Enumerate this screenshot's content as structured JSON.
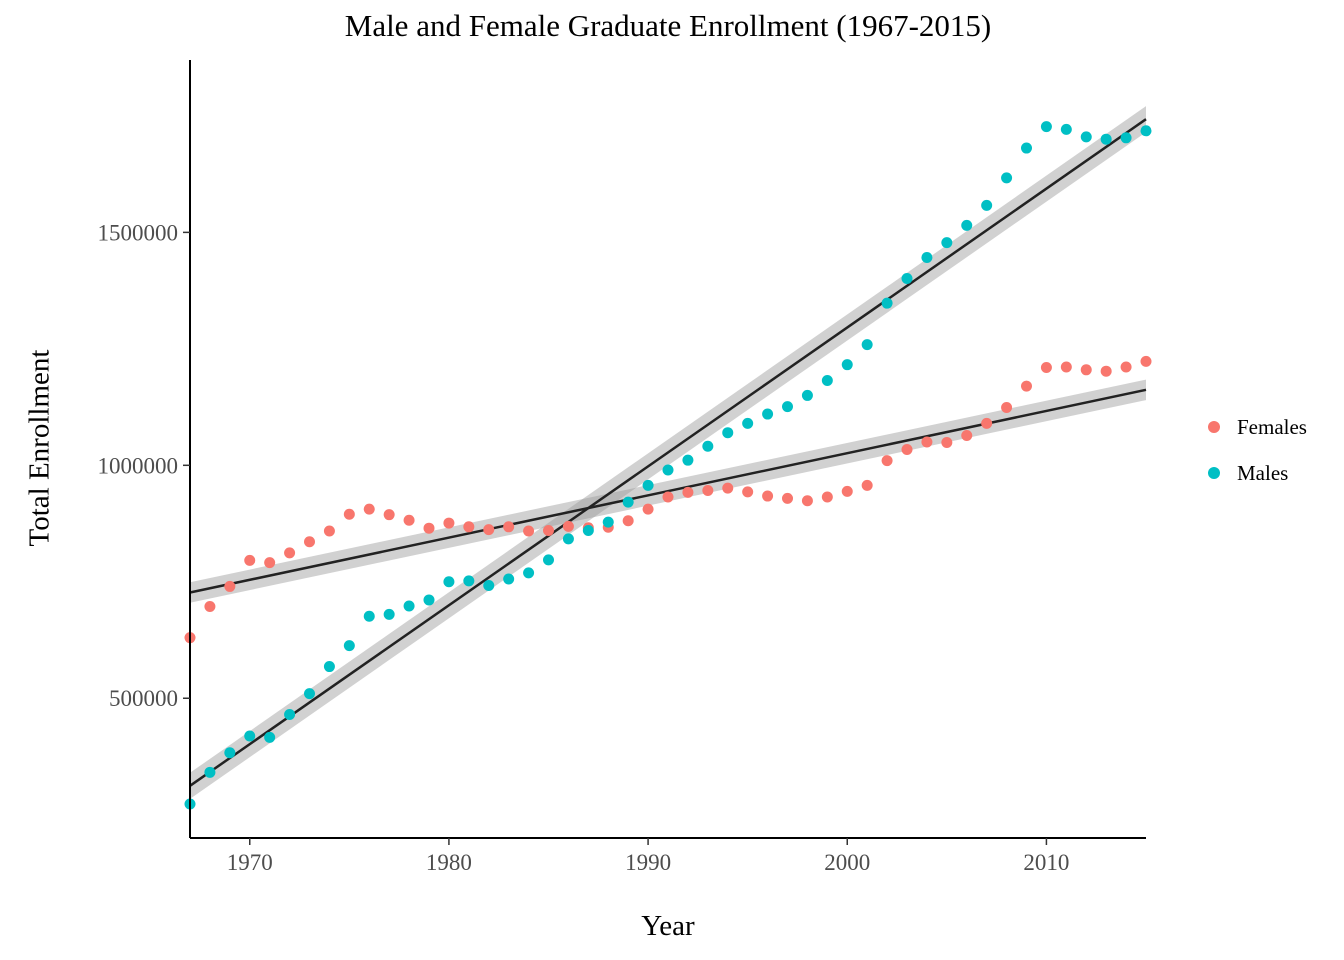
{
  "chart_data": {
    "type": "scatter",
    "title": "Male and Female Graduate Enrollment (1967-2015)",
    "xlabel": "Year",
    "ylabel": "Total Enrollment",
    "xlim": [
      1967,
      2015
    ],
    "ylim": [
      200000,
      1870000
    ],
    "x_ticks": [
      1970,
      1980,
      1990,
      2000,
      2010
    ],
    "x_tick_labels": [
      "1970",
      "1980",
      "1990",
      "2000",
      "2010"
    ],
    "y_ticks": [
      500000,
      1000000,
      1500000
    ],
    "y_tick_labels": [
      "500000",
      "1000000",
      "1500000"
    ],
    "grid": false,
    "legend": "right",
    "x": [
      1967,
      1968,
      1969,
      1970,
      1971,
      1972,
      1973,
      1974,
      1975,
      1976,
      1977,
      1978,
      1979,
      1980,
      1981,
      1982,
      1983,
      1984,
      1985,
      1986,
      1987,
      1988,
      1989,
      1990,
      1991,
      1992,
      1993,
      1994,
      1995,
      1996,
      1997,
      1998,
      1999,
      2000,
      2001,
      2002,
      2003,
      2004,
      2005,
      2006,
      2007,
      2008,
      2009,
      2010,
      2011,
      2012,
      2013,
      2014,
      2015
    ],
    "series": [
      {
        "name": "Females",
        "color": "#F8766D",
        "values": [
          630000,
          697000,
          740000,
          796000,
          791000,
          812000,
          836000,
          859000,
          895000,
          906000,
          894000,
          882000,
          865000,
          876000,
          868000,
          862000,
          868000,
          859000,
          860000,
          869000,
          866000,
          867000,
          881000,
          906000,
          932000,
          942000,
          946000,
          951000,
          943000,
          934000,
          929000,
          924000,
          932000,
          944000,
          957000,
          1010000,
          1034000,
          1050000,
          1049000,
          1064000,
          1090000,
          1124000,
          1170000,
          1210000,
          1211000,
          1205000,
          1202000,
          1211000,
          1223000
        ],
        "trend": {
          "start": 727000,
          "end": 1162000,
          "band": 22000
        }
      },
      {
        "name": "Males",
        "color": "#00BFC4",
        "values": [
          273000,
          341000,
          383000,
          419000,
          416000,
          465000,
          510000,
          568000,
          613000,
          676000,
          680000,
          698000,
          711000,
          750000,
          752000,
          742000,
          756000,
          769000,
          797000,
          842000,
          860000,
          878000,
          921000,
          957000,
          990000,
          1011000,
          1041000,
          1070000,
          1090000,
          1110000,
          1126000,
          1150000,
          1182000,
          1216000,
          1259000,
          1348000,
          1401000,
          1446000,
          1478000,
          1515000,
          1558000,
          1617000,
          1681000,
          1727000,
          1721000,
          1705000,
          1700000,
          1703000,
          1718000
        ],
        "trend": {
          "start": 312000,
          "end": 1743000,
          "band": 28000
        }
      }
    ]
  }
}
